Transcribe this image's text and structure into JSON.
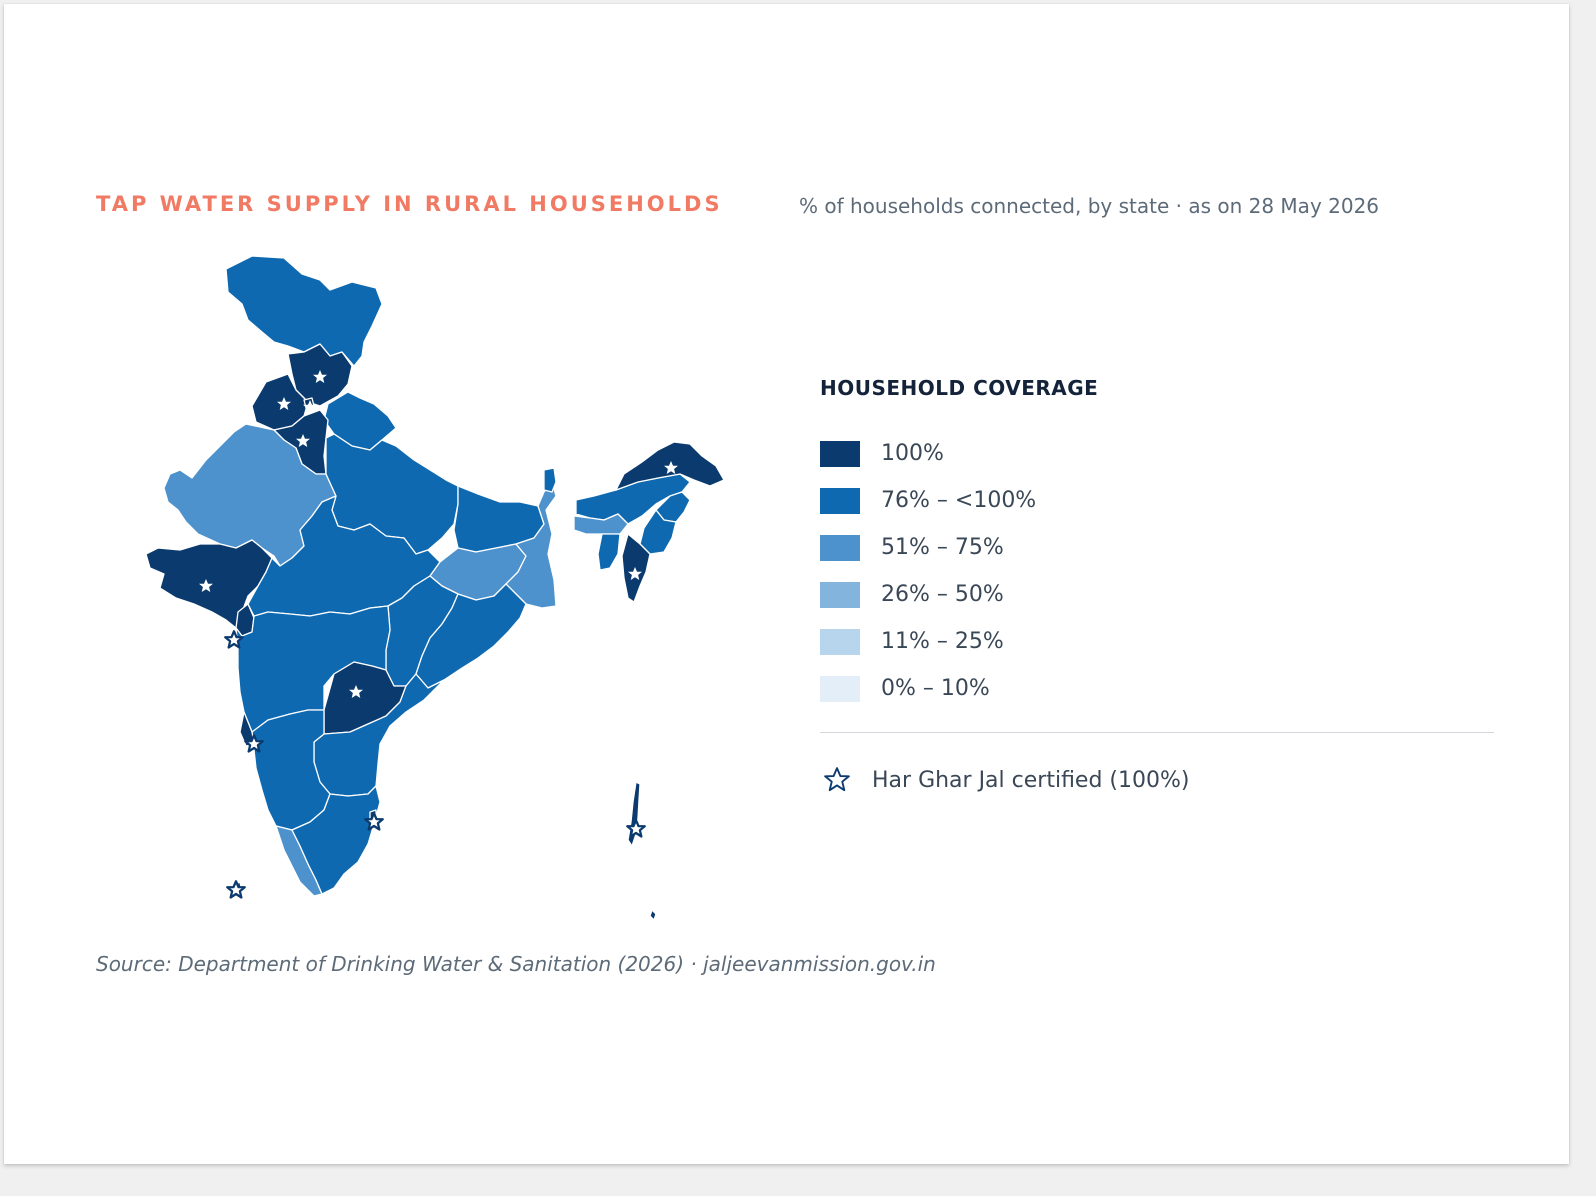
{
  "header": {
    "title": "TAP WATER SUPPLY IN RURAL HOUSEHOLDS",
    "subtitle": "% of households connected, by state · as on 28 May 2026"
  },
  "legend": {
    "title": "HOUSEHOLD COVERAGE",
    "bins": [
      {
        "label": "100%",
        "color": "#0b3a6e"
      },
      {
        "label": "76% – <100%",
        "color": "#0e69b0"
      },
      {
        "label": "51% – 75%",
        "color": "#4d92cc"
      },
      {
        "label": "26% – 50%",
        "color": "#82b4de"
      },
      {
        "label": "11% – 25%",
        "color": "#b8d5ee"
      },
      {
        "label": "0% – 10%",
        "color": "#e4eef8"
      }
    ],
    "star_label": "Har Ghar Jal certified (100%)",
    "star_icon": "star-outline-icon"
  },
  "map_data": {
    "regions": [
      {
        "id": "jammu-kashmir-ladakh",
        "bin": "76% – <100%"
      },
      {
        "id": "himachal-pradesh",
        "bin": "100%",
        "certified": true
      },
      {
        "id": "punjab",
        "bin": "100%",
        "certified": true
      },
      {
        "id": "haryana",
        "bin": "100%",
        "certified": true
      },
      {
        "id": "chandigarh",
        "bin": "100%",
        "certified": true
      },
      {
        "id": "uttarakhand",
        "bin": "76% – <100%"
      },
      {
        "id": "rajasthan",
        "bin": "51% – 75%"
      },
      {
        "id": "uttar-pradesh",
        "bin": "76% – <100%"
      },
      {
        "id": "bihar",
        "bin": "76% – <100%"
      },
      {
        "id": "gujarat",
        "bin": "100%",
        "certified": true
      },
      {
        "id": "madhya-pradesh",
        "bin": "76% – <100%"
      },
      {
        "id": "jharkhand",
        "bin": "51% – 75%"
      },
      {
        "id": "west-bengal",
        "bin": "51% – 75%"
      },
      {
        "id": "chhattisgarh",
        "bin": "76% – <100%"
      },
      {
        "id": "odisha",
        "bin": "76% – <100%"
      },
      {
        "id": "maharashtra",
        "bin": "76% – <100%"
      },
      {
        "id": "telangana",
        "bin": "100%",
        "certified": true
      },
      {
        "id": "andhra-pradesh",
        "bin": "76% – <100%"
      },
      {
        "id": "karnataka",
        "bin": "76% – <100%"
      },
      {
        "id": "goa",
        "bin": "100%",
        "certified": true
      },
      {
        "id": "kerala",
        "bin": "51% – 75%"
      },
      {
        "id": "tamil-nadu",
        "bin": "76% – <100%"
      },
      {
        "id": "puducherry",
        "bin": "100%",
        "certified": true
      },
      {
        "id": "sikkim",
        "bin": "76% – <100%"
      },
      {
        "id": "arunachal-pradesh",
        "bin": "100%",
        "certified": true
      },
      {
        "id": "assam",
        "bin": "76% – <100%"
      },
      {
        "id": "meghalaya",
        "bin": "51% – 75%"
      },
      {
        "id": "nagaland",
        "bin": "76% – <100%"
      },
      {
        "id": "manipur",
        "bin": "76% – <100%"
      },
      {
        "id": "mizoram",
        "bin": "100%",
        "certified": true
      },
      {
        "id": "tripura",
        "bin": "76% – <100%"
      },
      {
        "id": "dadra-nagar-haveli-daman-diu",
        "bin": "100%",
        "certified": true
      },
      {
        "id": "lakshadweep",
        "bin": "100%",
        "certified": true
      },
      {
        "id": "andaman-nicobar",
        "bin": "100%",
        "certified": true
      }
    ]
  },
  "footer": {
    "source": "Source: Department of Drinking Water & Sanitation (2026) · jaljeevanmission.gov.in"
  }
}
